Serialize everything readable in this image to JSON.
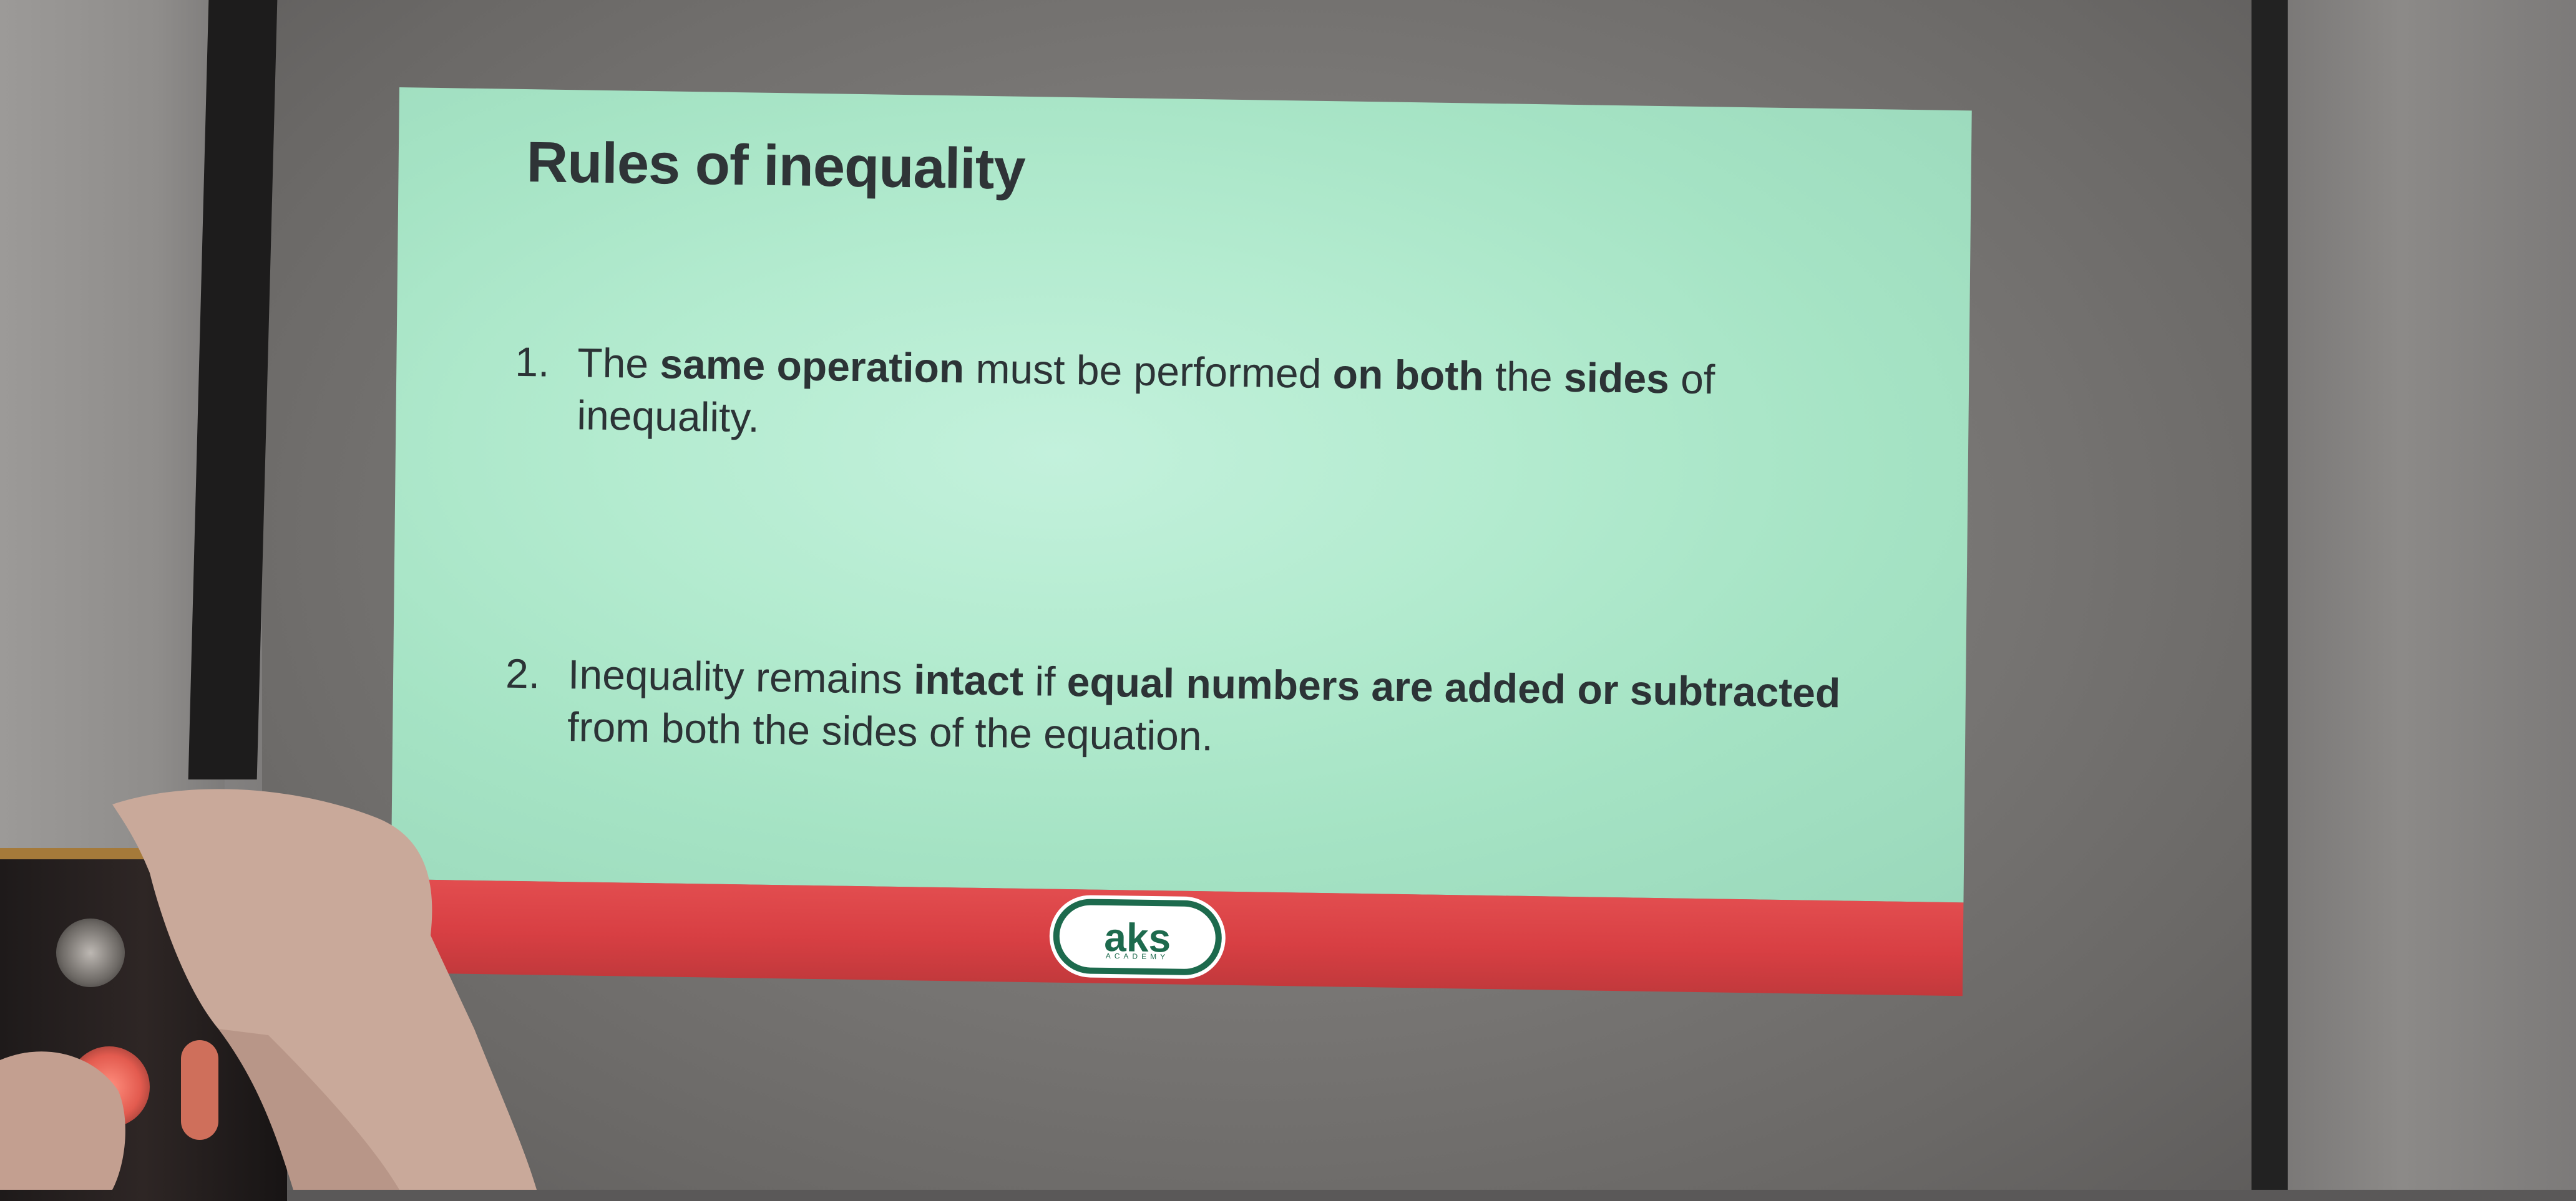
{
  "slide": {
    "title": "Rules of inequality",
    "rules": [
      {
        "number": "1.",
        "line1_a": "The ",
        "line1_b": "same operation",
        "line1_c": " must be performed ",
        "line1_d": "on both",
        "line1_e": " the ",
        "line1_f": "sides",
        "line1_g": " of",
        "line2": "inequality."
      },
      {
        "number": "2.",
        "line1_a": "Inequality remains ",
        "line1_b": "intact",
        "line1_c": " if ",
        "line1_d": "equal numbers are added or subtracted",
        "line2": "from both the sides of the equation."
      }
    ],
    "logo": {
      "text": "aks",
      "subtext": "ACADEMY"
    }
  },
  "colors": {
    "slide_background": "#b3ebcf",
    "footer_band": "#d83f43",
    "title_text": "#2f3437",
    "logo_green": "#1d6a4d"
  }
}
